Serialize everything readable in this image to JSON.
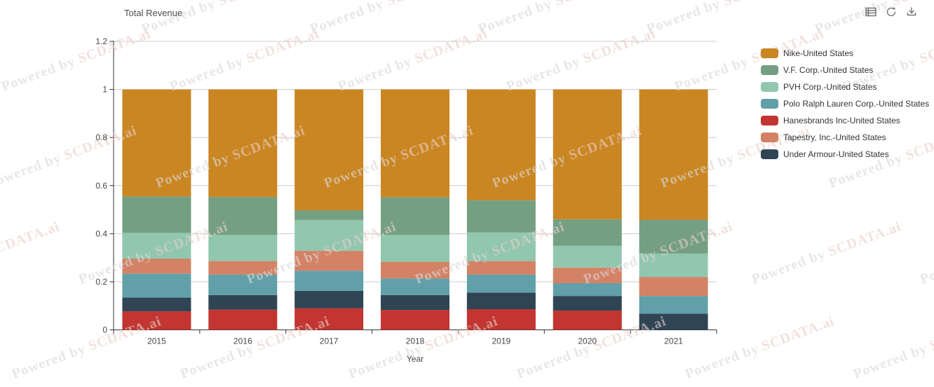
{
  "header": {
    "title": "Total Revenue"
  },
  "toolbar": {
    "icons": [
      {
        "name": "data-view-icon"
      },
      {
        "name": "refresh-icon"
      },
      {
        "name": "download-icon"
      }
    ]
  },
  "watermark": {
    "prefix": "Powered by ",
    "brand": "SCDATA.ai",
    "prefix_color": "#d9d9d9",
    "brand_color": "#e8cfc9"
  },
  "chart_data": {
    "type": "bar",
    "subtype": "stacked-normalized",
    "title": "Total Revenue",
    "xlabel": "Year",
    "ylabel": "",
    "ylim": [
      0,
      1.2
    ],
    "grid": true,
    "legend_position": "right",
    "categories": [
      "2015",
      "2016",
      "2017",
      "2018",
      "2019",
      "2020",
      "2021"
    ],
    "y_tick_labels": [
      "0",
      "0.2",
      "0.4",
      "0.6",
      "0.8",
      "1",
      "1.2"
    ],
    "y_ticks": [
      0,
      0.2,
      0.4,
      0.6,
      0.8,
      1,
      1.2
    ],
    "axis_color": "#333333",
    "grid_color": "#cccccc",
    "label_color": "#464646",
    "series": [
      {
        "name": "Nike-United States",
        "color": "#ca8622",
        "values": [
          0.445,
          0.447,
          0.503,
          0.448,
          0.461,
          0.54,
          0.542
        ]
      },
      {
        "name": "V.F. Corp.-United States",
        "color": "#749f83",
        "values": [
          0.151,
          0.158,
          0.04,
          0.157,
          0.134,
          0.11,
          0.141
        ]
      },
      {
        "name": "PVH Corp.-United States",
        "color": "#91c7ae",
        "values": [
          0.108,
          0.109,
          0.128,
          0.112,
          0.119,
          0.091,
          0.097
        ]
      },
      {
        "name": "Polo Ralph Lauren Corp.-United States",
        "color": "#61a0a8",
        "values": [
          0.1,
          0.085,
          0.084,
          0.069,
          0.075,
          0.053,
          0.074
        ]
      },
      {
        "name": "Hanesbrands Inc-United States",
        "color": "#c23531",
        "values": [
          0.077,
          0.084,
          0.09,
          0.083,
          0.086,
          0.08,
          0.0
        ]
      },
      {
        "name": "Tapestry, Inc.-United States",
        "color": "#d48265",
        "values": [
          0.062,
          0.056,
          0.083,
          0.069,
          0.056,
          0.065,
          0.079
        ]
      },
      {
        "name": "Under Armour-United States",
        "color": "#2f4554",
        "values": [
          0.057,
          0.061,
          0.072,
          0.062,
          0.069,
          0.061,
          0.067
        ]
      }
    ],
    "stack_order": [
      "Hanesbrands Inc-United States",
      "Under Armour-United States",
      "Polo Ralph Lauren Corp.-United States",
      "Tapestry, Inc.-United States",
      "PVH Corp.-United States",
      "V.F. Corp.-United States",
      "Nike-United States"
    ]
  }
}
